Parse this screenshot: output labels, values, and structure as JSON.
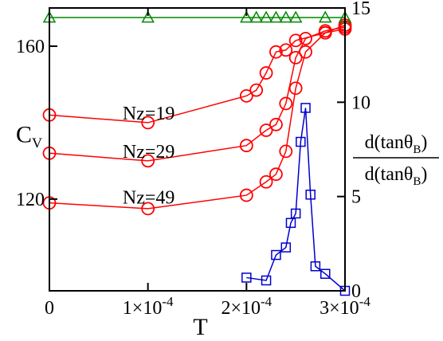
{
  "chart_data": {
    "type": "scatter",
    "x_axis": {
      "label": "T",
      "range": [
        0,
        0.0003
      ],
      "ticks": [
        {
          "value": 0,
          "base": "0",
          "exp": ""
        },
        {
          "value": 0.0001,
          "base": "1×10",
          "exp": "-4"
        },
        {
          "value": 0.0002,
          "base": "2×10",
          "exp": "-4"
        },
        {
          "value": 0.0003,
          "base": "3×10",
          "exp": "-4"
        }
      ]
    },
    "y_left": {
      "label_main": "C",
      "label_sub": "V",
      "range": [
        96,
        170
      ],
      "ticks": [
        {
          "value": 120,
          "label": "120"
        },
        {
          "value": 160,
          "label": "160"
        }
      ]
    },
    "y_right": {
      "range": [
        0,
        15
      ],
      "ticks": [
        {
          "value": 0,
          "label": "0"
        },
        {
          "value": 5,
          "label": "5"
        },
        {
          "value": 10,
          "label": "10"
        },
        {
          "value": 15,
          "label": "15"
        }
      ],
      "label_numerator": {
        "pre": "d(tanθ",
        "sub": "B",
        "post": ")"
      },
      "label_denominator": {
        "pre": "d(tanθ",
        "sub": "B",
        "post": ")"
      }
    },
    "series": [
      {
        "axis": "left",
        "marker": "circle",
        "color": "#ff0000",
        "x": [
          0,
          0.0001,
          0.0002,
          0.00021,
          0.00022,
          0.00023,
          0.00024,
          0.00025,
          0.00028,
          0.0003
        ],
        "y": [
          142,
          140,
          147,
          148.5,
          153,
          158.5,
          159,
          161.5,
          163.5,
          164.5
        ]
      },
      {
        "axis": "left",
        "marker": "circle",
        "color": "#ff0000",
        "x": [
          0,
          0.0001,
          0.0002,
          0.00022,
          0.00023,
          0.00024,
          0.00025,
          0.00026,
          0.00028,
          0.0003
        ],
        "y": [
          132,
          130,
          134,
          138,
          139.5,
          145,
          157,
          162,
          164,
          165
        ]
      },
      {
        "axis": "left",
        "marker": "circle",
        "color": "#ff0000",
        "x": [
          0,
          0.0001,
          0.0002,
          0.00022,
          0.00023,
          0.00024,
          0.00025,
          0.00026,
          0.00028,
          0.0003
        ],
        "y": [
          119,
          117.5,
          121,
          124.5,
          126.5,
          132.5,
          149,
          158.5,
          163.5,
          165.5
        ]
      },
      {
        "axis": "left",
        "marker": "triangle",
        "color": "#008800",
        "x": [
          0,
          0.0001,
          0.0002,
          0.00021,
          0.00022,
          0.00023,
          0.00024,
          0.00025,
          0.00028,
          0.0003
        ],
        "y": [
          167.5,
          167.5,
          167.5,
          167.5,
          167.5,
          167.5,
          167.5,
          167.5,
          167.5,
          167.5
        ]
      },
      {
        "axis": "right",
        "marker": "square",
        "color": "#0000cc",
        "x": [
          0.0002,
          0.00022,
          0.00023,
          0.00024,
          0.000245,
          0.00025,
          0.000255,
          0.00026,
          0.000265,
          0.00027,
          0.00028,
          0.0003
        ],
        "y": [
          0.7,
          0.55,
          1.9,
          2.3,
          3.6,
          4.1,
          7.9,
          9.7,
          5.1,
          1.3,
          0.9,
          0
        ]
      }
    ],
    "annotations": [
      {
        "text": "Nz=19",
        "x": 0.0001,
        "y": 142.5
      },
      {
        "text": "Nz=29",
        "x": 0.0001,
        "y": 132.5
      },
      {
        "text": "Nz=49",
        "x": 0.0001,
        "y": 120.5
      }
    ],
    "grid": false
  }
}
